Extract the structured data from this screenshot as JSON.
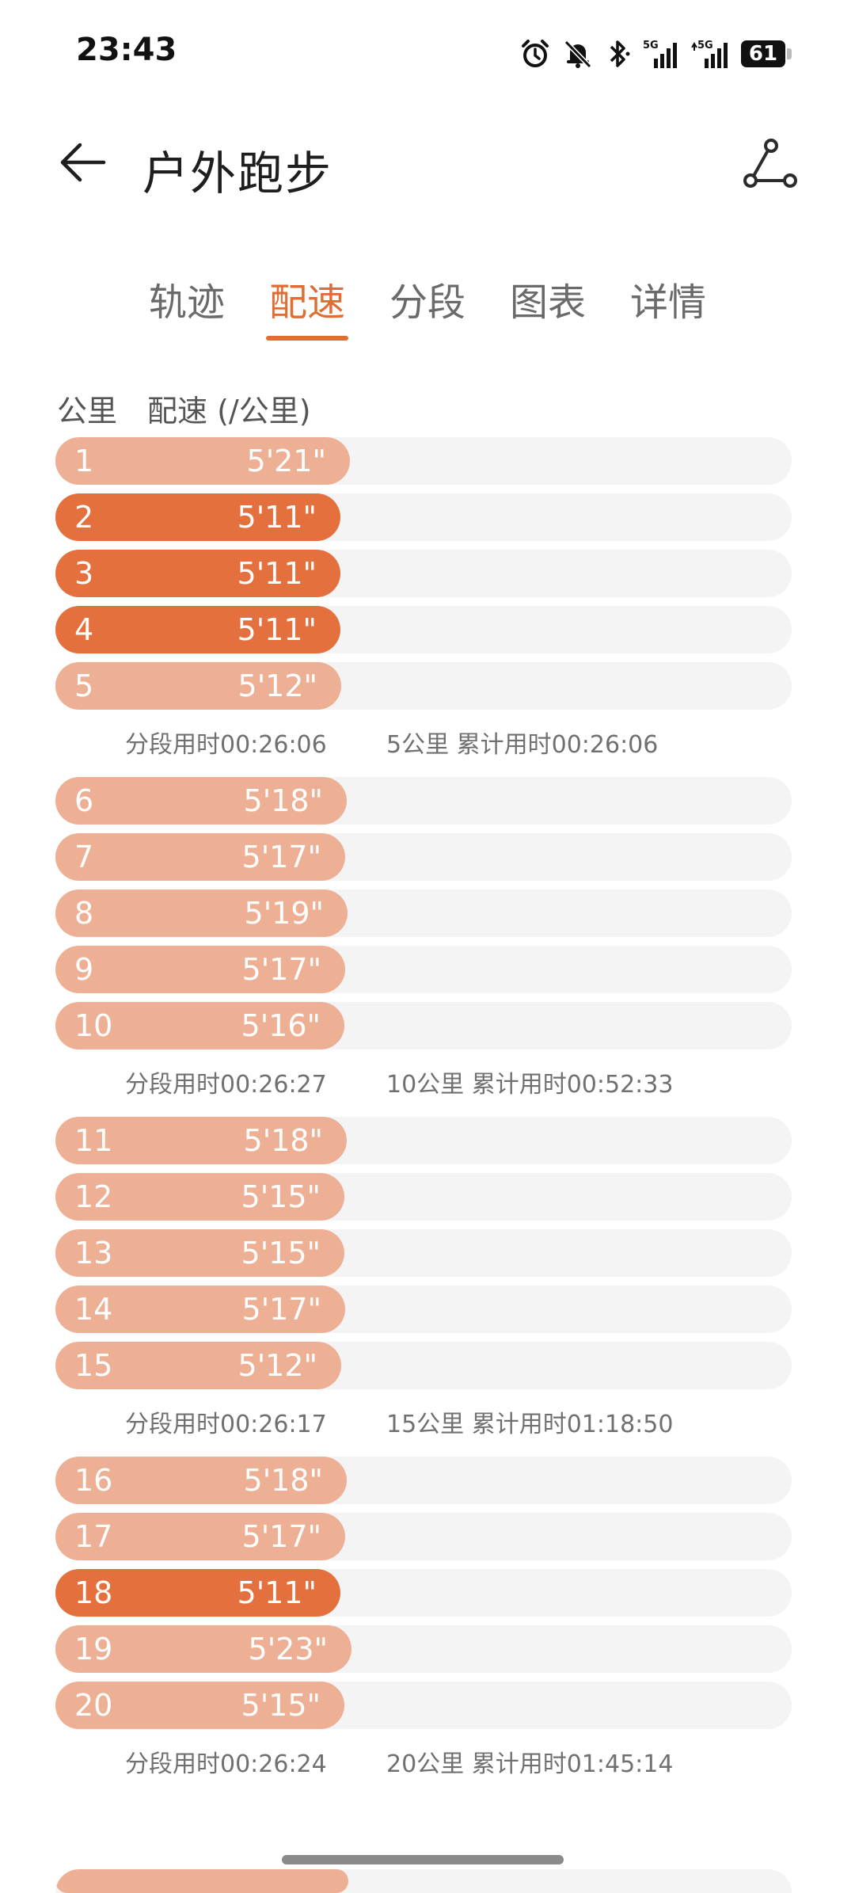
{
  "status_bar": {
    "time": "23:43",
    "battery": "61",
    "icons": [
      "alarm-icon",
      "mute-bell-icon",
      "bluetooth-icon",
      "signal-5g-icon",
      "signal-5g-icon"
    ],
    "network_label": "5G"
  },
  "header": {
    "title": "户外跑步",
    "back_icon": "arrow-left-icon",
    "route_icon": "route-share-icon"
  },
  "tabs": [
    {
      "label": "轨迹",
      "active": false
    },
    {
      "label": "配速",
      "active": true
    },
    {
      "label": "分段",
      "active": false
    },
    {
      "label": "图表",
      "active": false
    },
    {
      "label": "详情",
      "active": false
    }
  ],
  "colors": {
    "accent": "#e06d33",
    "bar_fast": "#e4703e",
    "bar_normal": "#eeb094",
    "track": "#f4f4f4"
  },
  "column_header": {
    "km": "公里",
    "pace": "配速 (/公里)"
  },
  "groups": [
    {
      "rows": [
        {
          "km": "1",
          "pace": "5'21\"",
          "fill": 0.4,
          "fast": false
        },
        {
          "km": "2",
          "pace": "5'11\"",
          "fill": 0.387,
          "fast": true
        },
        {
          "km": "3",
          "pace": "5'11\"",
          "fill": 0.387,
          "fast": true
        },
        {
          "km": "4",
          "pace": "5'11\"",
          "fill": 0.387,
          "fast": true
        },
        {
          "km": "5",
          "pace": "5'12\"",
          "fill": 0.388,
          "fast": false
        }
      ],
      "segment_time": "分段用时00:26:06",
      "cumulative": "5公里 累计用时00:26:06"
    },
    {
      "rows": [
        {
          "km": "6",
          "pace": "5'18\"",
          "fill": 0.396,
          "fast": false
        },
        {
          "km": "7",
          "pace": "5'17\"",
          "fill": 0.394,
          "fast": false
        },
        {
          "km": "8",
          "pace": "5'19\"",
          "fill": 0.397,
          "fast": false
        },
        {
          "km": "9",
          "pace": "5'17\"",
          "fill": 0.394,
          "fast": false
        },
        {
          "km": "10",
          "pace": "5'16\"",
          "fill": 0.393,
          "fast": false
        }
      ],
      "segment_time": "分段用时00:26:27",
      "cumulative": "10公里 累计用时00:52:33"
    },
    {
      "rows": [
        {
          "km": "11",
          "pace": "5'18\"",
          "fill": 0.396,
          "fast": false
        },
        {
          "km": "12",
          "pace": "5'15\"",
          "fill": 0.392,
          "fast": false
        },
        {
          "km": "13",
          "pace": "5'15\"",
          "fill": 0.392,
          "fast": false
        },
        {
          "km": "14",
          "pace": "5'17\"",
          "fill": 0.394,
          "fast": false
        },
        {
          "km": "15",
          "pace": "5'12\"",
          "fill": 0.388,
          "fast": false
        }
      ],
      "segment_time": "分段用时00:26:17",
      "cumulative": "15公里 累计用时01:18:50"
    },
    {
      "rows": [
        {
          "km": "16",
          "pace": "5'18\"",
          "fill": 0.396,
          "fast": false
        },
        {
          "km": "17",
          "pace": "5'17\"",
          "fill": 0.394,
          "fast": false
        },
        {
          "km": "18",
          "pace": "5'11\"",
          "fill": 0.387,
          "fast": true
        },
        {
          "km": "19",
          "pace": "5'23\"",
          "fill": 0.402,
          "fast": false
        },
        {
          "km": "20",
          "pace": "5'15\"",
          "fill": 0.392,
          "fast": false
        }
      ],
      "segment_time": "分段用时00:26:24",
      "cumulative": "20公里 累计用时01:45:14"
    }
  ]
}
